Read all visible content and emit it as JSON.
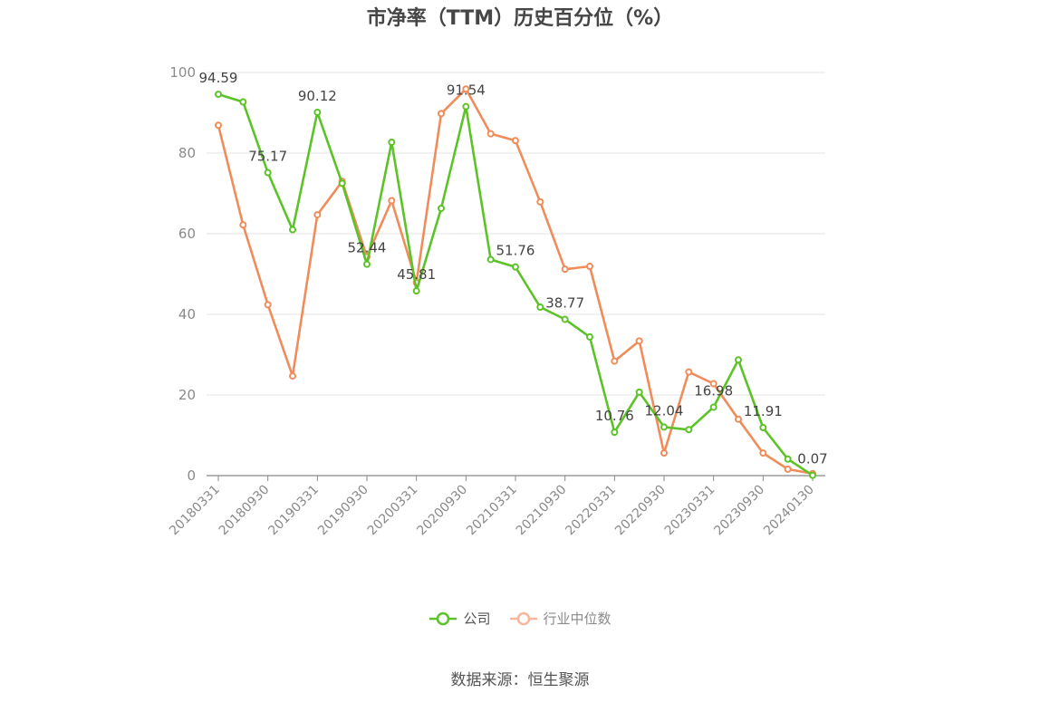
{
  "title": "市净率（TTM）历史百分位（%）",
  "source": "数据来源：恒生聚源",
  "colors": {
    "company": "#5bc328",
    "industry": "#f08c5a",
    "grid": "#e3e3e3",
    "axis": "#888888"
  },
  "legend": {
    "company": "公司",
    "industry": "行业中位数"
  },
  "chart_data": {
    "type": "line",
    "title": "市净率（TTM）历史百分位（%）",
    "x": [
      "20180331",
      "20180630",
      "20180930",
      "20181231",
      "20190331",
      "20190630",
      "20190930",
      "20191231",
      "20200331",
      "20200630",
      "20200930",
      "20201231",
      "20210331",
      "20210630",
      "20210930",
      "20211231",
      "20220331",
      "20220630",
      "20220930",
      "20221231",
      "20230331",
      "20230630",
      "20230930",
      "20231231",
      "20240130"
    ],
    "x_tick_labels": [
      "20180331",
      "20180930",
      "20190331",
      "20190930",
      "20200331",
      "20200930",
      "20210331",
      "20210930",
      "20220331",
      "20220930",
      "20230331",
      "20230930",
      "20240130"
    ],
    "ylim": [
      0,
      100
    ],
    "y_ticks": [
      0,
      20,
      40,
      60,
      80,
      100
    ],
    "grid": true,
    "legend_position": "bottom",
    "series": [
      {
        "name": "公司",
        "values": [
          94.59,
          92.7,
          75.17,
          61.0,
          90.12,
          72.5,
          52.44,
          82.7,
          45.81,
          66.3,
          91.54,
          53.6,
          51.76,
          41.8,
          38.77,
          34.4,
          10.76,
          20.7,
          12.04,
          11.4,
          16.98,
          28.7,
          11.91,
          4.1,
          0.07
        ],
        "labels": {
          "0": "94.59",
          "2": "75.17",
          "4": "90.12",
          "6": "52.44",
          "8": "45.81",
          "10": "91.54",
          "12": "51.76",
          "14": "38.77",
          "16": "10.76",
          "18": "12.04",
          "20": "16.98",
          "22": "11.91",
          "24": "0.07"
        }
      },
      {
        "name": "行业中位数",
        "values": [
          86.9,
          62.2,
          42.4,
          24.7,
          64.7,
          73.0,
          54.3,
          68.2,
          47.9,
          89.8,
          95.9,
          84.8,
          83.1,
          67.9,
          51.2,
          51.9,
          28.4,
          33.4,
          5.6,
          25.7,
          22.8,
          14.0,
          5.6,
          1.6,
          0.5
        ]
      }
    ]
  }
}
